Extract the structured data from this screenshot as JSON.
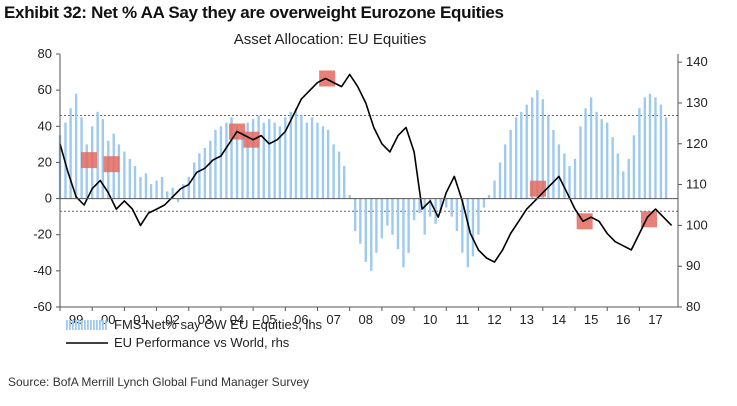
{
  "header": {
    "exhibit_title": "Exhibit 32: Net % AA Say they are overweight Eurozone Equities"
  },
  "footer": {
    "source": "Source: BofA Merrill Lynch Global Fund Manager Survey"
  },
  "colors": {
    "bars": "#9ecaf0",
    "line": "#000000",
    "highlight": "#e36b5f",
    "axis": "#555555",
    "dotted_ref": "#666666"
  },
  "chart_data": {
    "type": "bar",
    "title": "Asset Allocation: EU Equities",
    "x_categories": [
      "99",
      "00",
      "01",
      "02",
      "03",
      "04",
      "05",
      "06",
      "07",
      "08",
      "09",
      "10",
      "11",
      "12",
      "13",
      "14",
      "15",
      "16",
      "17"
    ],
    "x_range": [
      1999.0,
      2018.2
    ],
    "left_axis": {
      "ylim": [
        -60,
        80
      ],
      "ticks": [
        "80",
        "60",
        "40",
        "20",
        "0",
        "-20",
        "-40",
        "-60"
      ],
      "tick_values": [
        80,
        60,
        40,
        20,
        0,
        -20,
        -40,
        -60
      ]
    },
    "right_axis": {
      "ylim": [
        80,
        142
      ],
      "ticks": [
        "140",
        "130",
        "120",
        "110",
        "100",
        "90",
        "80"
      ],
      "tick_values": [
        140,
        130,
        120,
        110,
        100,
        90,
        80
      ]
    },
    "reference_lines": [
      {
        "axis": "left",
        "value": 46
      },
      {
        "axis": "left",
        "value": -7
      }
    ],
    "legend": [
      {
        "label": "FMS Net% say OW EU Equities, lhs",
        "kind": "bars"
      },
      {
        "label": "EU Performance vs World, rhs",
        "kind": "line"
      }
    ],
    "series": [
      {
        "name": "FMS Net% say OW EU Equities, lhs",
        "kind": "bar",
        "axis": "left",
        "x": [
          1999.0,
          1999.17,
          1999.33,
          1999.5,
          1999.67,
          1999.83,
          2000.0,
          2000.17,
          2000.33,
          2000.5,
          2000.67,
          2000.83,
          2001.0,
          2001.17,
          2001.33,
          2001.5,
          2001.67,
          2001.83,
          2002.0,
          2002.17,
          2002.33,
          2002.5,
          2002.67,
          2002.83,
          2003.0,
          2003.17,
          2003.33,
          2003.5,
          2003.67,
          2003.83,
          2004.0,
          2004.17,
          2004.33,
          2004.5,
          2004.67,
          2004.83,
          2005.0,
          2005.17,
          2005.33,
          2005.5,
          2005.67,
          2005.83,
          2006.0,
          2006.17,
          2006.33,
          2006.5,
          2006.67,
          2006.83,
          2007.0,
          2007.17,
          2007.33,
          2007.5,
          2007.67,
          2007.83,
          2008.0,
          2008.17,
          2008.33,
          2008.5,
          2008.67,
          2008.83,
          2009.0,
          2009.17,
          2009.33,
          2009.5,
          2009.67,
          2009.83,
          2010.0,
          2010.17,
          2010.33,
          2010.5,
          2010.67,
          2010.83,
          2011.0,
          2011.17,
          2011.33,
          2011.5,
          2011.67,
          2011.83,
          2012.0,
          2012.17,
          2012.33,
          2012.5,
          2012.67,
          2012.83,
          2013.0,
          2013.17,
          2013.33,
          2013.5,
          2013.67,
          2013.83,
          2014.0,
          2014.17,
          2014.33,
          2014.5,
          2014.67,
          2014.83,
          2015.0,
          2015.17,
          2015.33,
          2015.5,
          2015.67,
          2015.83,
          2016.0,
          2016.17,
          2016.33,
          2016.5,
          2016.67,
          2016.83,
          2017.0,
          2017.17,
          2017.33,
          2017.5,
          2017.67,
          2017.83
        ],
        "values": [
          35,
          42,
          50,
          58,
          45,
          30,
          40,
          48,
          44,
          32,
          36,
          30,
          26,
          22,
          18,
          12,
          14,
          8,
          10,
          12,
          4,
          6,
          -2,
          8,
          12,
          20,
          25,
          28,
          32,
          38,
          40,
          42,
          45,
          40,
          38,
          42,
          44,
          46,
          42,
          44,
          42,
          40,
          45,
          48,
          50,
          46,
          42,
          45,
          42,
          40,
          38,
          30,
          26,
          18,
          2,
          -18,
          -25,
          -35,
          -40,
          -30,
          -22,
          -15,
          -20,
          -28,
          -38,
          -30,
          -12,
          -8,
          -20,
          -10,
          -14,
          -8,
          -5,
          -10,
          -18,
          -30,
          -38,
          -32,
          -20,
          -5,
          2,
          10,
          20,
          30,
          38,
          45,
          48,
          52,
          56,
          60,
          55,
          46,
          38,
          30,
          25,
          18,
          22,
          40,
          50,
          56,
          48,
          44,
          42,
          34,
          25,
          15,
          22,
          35,
          50,
          56,
          58,
          56,
          52,
          45
        ]
      },
      {
        "name": "EU Performance vs World, rhs",
        "kind": "line",
        "axis": "right",
        "x": [
          1999.0,
          1999.25,
          1999.5,
          1999.75,
          2000.0,
          2000.25,
          2000.5,
          2000.75,
          2001.0,
          2001.25,
          2001.5,
          2001.75,
          2002.0,
          2002.25,
          2002.5,
          2002.75,
          2003.0,
          2003.25,
          2003.5,
          2003.75,
          2004.0,
          2004.25,
          2004.5,
          2004.75,
          2005.0,
          2005.25,
          2005.5,
          2005.75,
          2006.0,
          2006.25,
          2006.5,
          2006.75,
          2007.0,
          2007.25,
          2007.5,
          2007.75,
          2008.0,
          2008.25,
          2008.5,
          2008.75,
          2009.0,
          2009.25,
          2009.5,
          2009.75,
          2010.0,
          2010.25,
          2010.5,
          2010.75,
          2011.0,
          2011.25,
          2011.5,
          2011.75,
          2012.0,
          2012.25,
          2012.5,
          2012.75,
          2013.0,
          2013.25,
          2013.5,
          2013.75,
          2014.0,
          2014.25,
          2014.5,
          2014.75,
          2015.0,
          2015.25,
          2015.5,
          2015.75,
          2016.0,
          2016.25,
          2016.5,
          2016.75,
          2017.0,
          2017.25,
          2017.5,
          2017.75,
          2018.0
        ],
        "values": [
          120,
          113,
          107,
          105,
          109,
          111,
          108,
          104,
          106,
          104,
          100,
          103,
          104,
          105,
          107,
          109,
          110,
          113,
          114,
          116,
          117,
          120,
          123,
          122,
          121,
          122,
          120,
          121,
          123,
          127,
          131,
          133,
          135,
          136,
          135,
          134,
          137,
          134,
          130,
          124,
          120,
          118,
          122,
          124,
          118,
          104,
          106,
          102,
          108,
          112,
          106,
          98,
          94,
          92,
          91,
          94,
          98,
          101,
          104,
          106,
          108,
          110,
          112,
          108,
          104,
          101,
          102,
          101,
          98,
          96,
          95,
          94,
          98,
          102,
          104,
          102,
          100
        ]
      }
    ],
    "highlight_boxes": [
      {
        "x": 1999.9,
        "value": 116
      },
      {
        "x": 2000.6,
        "value": 115
      },
      {
        "x": 2004.5,
        "value": 123
      },
      {
        "x": 2004.95,
        "value": 121
      },
      {
        "x": 2007.3,
        "value": 136
      },
      {
        "x": 2013.85,
        "value": 109
      },
      {
        "x": 2015.3,
        "value": 101
      },
      {
        "x": 2017.3,
        "value": 101.5
      }
    ]
  }
}
